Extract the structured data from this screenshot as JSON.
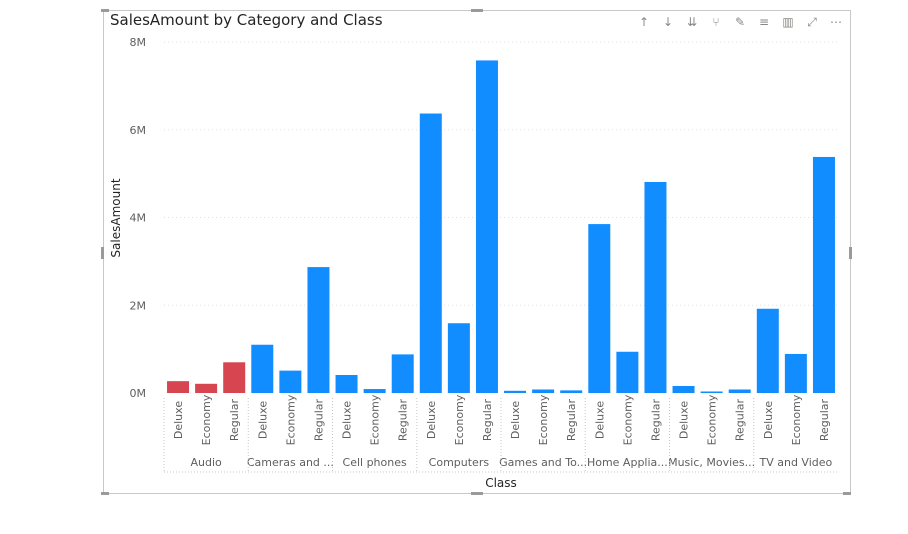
{
  "visual": {
    "title": "SalesAmount by Category and Class",
    "toolbar": [
      {
        "name": "drill-up-icon",
        "glyph": "↑"
      },
      {
        "name": "drill-down-icon",
        "glyph": "↓"
      },
      {
        "name": "expand-all-down-icon",
        "glyph": "⇊"
      },
      {
        "name": "drill-mode-icon",
        "glyph": "⑂"
      },
      {
        "name": "pin-icon",
        "glyph": "✎"
      },
      {
        "name": "filter-icon",
        "glyph": "≡"
      },
      {
        "name": "spotlight-icon",
        "glyph": "▥"
      },
      {
        "name": "focus-mode-icon",
        "glyph": "⤢"
      },
      {
        "name": "more-options-icon",
        "glyph": "⋯"
      }
    ]
  },
  "chart_data": {
    "type": "bar",
    "title": "SalesAmount by Category and Class",
    "xlabel": "Class",
    "ylabel": "SalesAmount",
    "ylim": [
      0,
      8000000
    ],
    "yticks": [
      {
        "value": 0,
        "label": "0M"
      },
      {
        "value": 2000000,
        "label": "2M"
      },
      {
        "value": 4000000,
        "label": "4M"
      },
      {
        "value": 6000000,
        "label": "6M"
      },
      {
        "value": 8000000,
        "label": "8M"
      }
    ],
    "grid": true,
    "colors": {
      "default": "#118DFF",
      "highlight": "#D64550"
    },
    "groups": [
      {
        "category": "Audio",
        "highlight": true,
        "bars": [
          {
            "class": "Deluxe",
            "value": 270000
          },
          {
            "class": "Economy",
            "value": 210000
          },
          {
            "class": "Regular",
            "value": 700000
          }
        ]
      },
      {
        "category": "Cameras and ...",
        "highlight": false,
        "bars": [
          {
            "class": "Deluxe",
            "value": 1100000
          },
          {
            "class": "Economy",
            "value": 510000
          },
          {
            "class": "Regular",
            "value": 2870000
          }
        ]
      },
      {
        "category": "Cell phones",
        "highlight": false,
        "bars": [
          {
            "class": "Deluxe",
            "value": 410000
          },
          {
            "class": "Economy",
            "value": 90000
          },
          {
            "class": "Regular",
            "value": 880000
          }
        ]
      },
      {
        "category": "Computers",
        "highlight": false,
        "bars": [
          {
            "class": "Deluxe",
            "value": 6370000
          },
          {
            "class": "Economy",
            "value": 1590000
          },
          {
            "class": "Regular",
            "value": 7580000
          }
        ]
      },
      {
        "category": "Games and To...",
        "highlight": false,
        "bars": [
          {
            "class": "Deluxe",
            "value": 50000
          },
          {
            "class": "Economy",
            "value": 80000
          },
          {
            "class": "Regular",
            "value": 60000
          }
        ]
      },
      {
        "category": "Home Applia...",
        "highlight": false,
        "bars": [
          {
            "class": "Deluxe",
            "value": 3850000
          },
          {
            "class": "Economy",
            "value": 940000
          },
          {
            "class": "Regular",
            "value": 4810000
          }
        ]
      },
      {
        "category": "Music, Movies...",
        "highlight": false,
        "bars": [
          {
            "class": "Deluxe",
            "value": 160000
          },
          {
            "class": "Economy",
            "value": 20000
          },
          {
            "class": "Regular",
            "value": 80000
          }
        ]
      },
      {
        "category": "TV and Video",
        "highlight": false,
        "bars": [
          {
            "class": "Deluxe",
            "value": 1920000
          },
          {
            "class": "Economy",
            "value": 890000
          },
          {
            "class": "Regular",
            "value": 5380000
          }
        ]
      }
    ]
  }
}
